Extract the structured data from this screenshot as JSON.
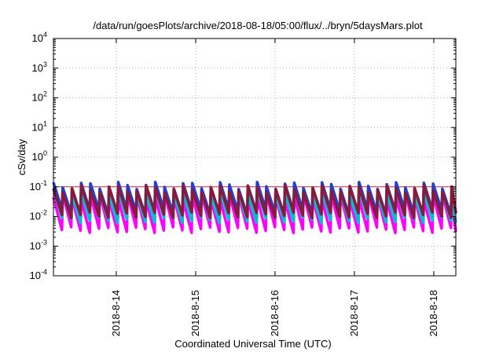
{
  "chart_data": {
    "type": "line",
    "title": "/data/run/goesPlots/archive/2018-08-18/05:00/flux/../bryn/5daysMars.plot",
    "xlabel": "Coordinated Universal Time (UTC)",
    "ylabel": "cSv/day",
    "yscale": "log",
    "ylim": [
      0.0001,
      10000
    ],
    "y_ticks": [
      {
        "base": "10",
        "exp": "-4"
      },
      {
        "base": "10",
        "exp": "-3"
      },
      {
        "base": "10",
        "exp": "-2"
      },
      {
        "base": "10",
        "exp": "-1"
      },
      {
        "base": "10",
        "exp": "0"
      },
      {
        "base": "10",
        "exp": "1"
      },
      {
        "base": "10",
        "exp": "2"
      },
      {
        "base": "10",
        "exp": "3"
      },
      {
        "base": "10",
        "exp": "4"
      }
    ],
    "xlim": [
      "2018-08-13T05:00",
      "2018-08-18T06:40"
    ],
    "x_ticks": [
      "2018-8-14",
      "2018-8-15",
      "2018-8-16",
      "2018-8-17",
      "2018-8-18"
    ],
    "grid": true,
    "reference_line": {
      "y": 0.1,
      "color": "#e0202a"
    },
    "sawtooth": {
      "period_hours": 2.8,
      "bands": [
        {
          "color": "#ff00ff",
          "peak": 0.045,
          "trough": 0.0035
        },
        {
          "color": "#00c0d0",
          "peak": 0.07,
          "trough": 0.0075
        },
        {
          "color": "#1f3fd0",
          "peak": 0.11,
          "trough": 0.014
        },
        {
          "color": "#8a1a3a",
          "peak": 0.085,
          "trough": 0.011
        }
      ]
    }
  }
}
